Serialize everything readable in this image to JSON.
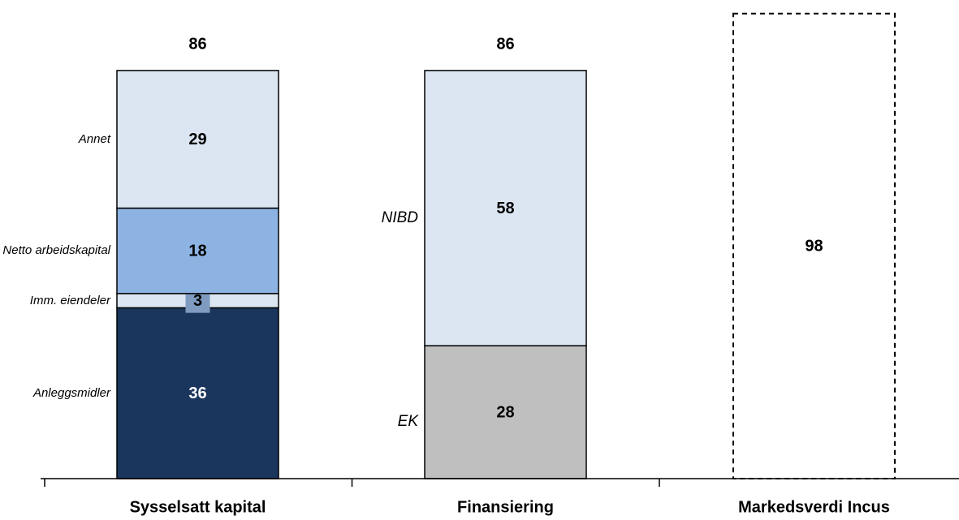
{
  "chart_data": {
    "type": "stacked_bar",
    "categories": [
      "Sysselsatt kapital",
      "Finansiering",
      "Markedsverdi Incus"
    ],
    "series": [
      {
        "name": "Anleggsmidler",
        "color": "#1b365d",
        "values": [
          36,
          null,
          null
        ]
      },
      {
        "name": "Imm. eiendeler",
        "color": "#dce6f2",
        "values": [
          3,
          null,
          null
        ]
      },
      {
        "name": "Netto arbeidskapital",
        "color": "#8db3e2",
        "values": [
          18,
          null,
          null
        ]
      },
      {
        "name": "Annet",
        "color": "#dce6f2",
        "values": [
          29,
          null,
          null
        ]
      },
      {
        "name": "EK",
        "color": "#bfbfbf",
        "values": [
          null,
          28,
          null
        ]
      },
      {
        "name": "NIBD",
        "color": "#dce6f2",
        "values": [
          null,
          58,
          null
        ]
      },
      {
        "color": "none",
        "dashed": true,
        "values": [
          null,
          null,
          98
        ]
      }
    ],
    "totals": [
      86,
      86,
      null
    ],
    "ylim": [
      0,
      100
    ]
  }
}
